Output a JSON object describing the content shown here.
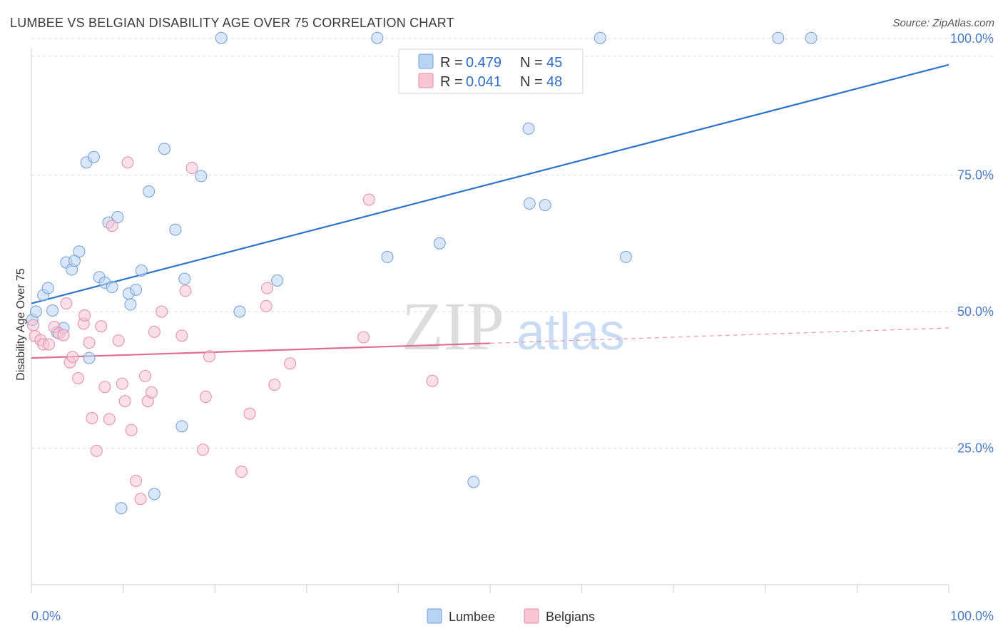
{
  "header": {
    "title": "LUMBEE VS BELGIAN DISABILITY AGE OVER 75 CORRELATION CHART",
    "source": "Source: ZipAtlas.com"
  },
  "watermark": {
    "zip": "ZIP",
    "atlas": "atlas"
  },
  "colors": {
    "lumbee_fill": "#b9d3f2",
    "lumbee_stroke": "#6f9ed8",
    "lumbee_line": "#2f72c9",
    "belgians_fill": "#f8c5d5",
    "belgians_stroke": "#e58aa8",
    "belgians_line": "#e06b95",
    "tick_label": "#4a7cc7",
    "grid": "#dddddd"
  },
  "legend": {
    "rows": [
      {
        "r_label": "R = ",
        "r_value": "0.479",
        "n_label": "N = ",
        "n_value": "45"
      },
      {
        "r_label": "R = ",
        "r_value": "0.041",
        "n_label": "N = ",
        "n_value": "48"
      }
    ],
    "series": [
      "Lumbee",
      "Belgians"
    ]
  },
  "chart_data": {
    "type": "scatter",
    "title": "LUMBEE VS BELGIAN DISABILITY AGE OVER 75 CORRELATION CHART",
    "xlabel": "",
    "ylabel": "Disability Age Over 75",
    "xlim": [
      0,
      100
    ],
    "ylim": [
      0,
      105
    ],
    "x_tick_labels": [
      "0.0%",
      "100.0%"
    ],
    "y_ticks": [
      {
        "value": 25,
        "label": "25.0%"
      },
      {
        "value": 50,
        "label": "50.0%"
      },
      {
        "value": 75,
        "label": "75.0%"
      },
      {
        "value": 100,
        "label": "100.0%"
      }
    ],
    "grid": true,
    "legend_position": "top-center",
    "series": [
      {
        "name": "Lumbee",
        "points": [
          [
            0.1,
            48.5
          ],
          [
            0.5,
            50
          ],
          [
            1.3,
            53
          ],
          [
            1.8,
            54.3
          ],
          [
            2.3,
            50.2
          ],
          [
            2.8,
            46.2
          ],
          [
            3.5,
            47
          ],
          [
            3.8,
            59
          ],
          [
            4.4,
            57.7
          ],
          [
            4.7,
            59.3
          ],
          [
            5.2,
            61
          ],
          [
            6.0,
            77.3
          ],
          [
            6.8,
            78.3
          ],
          [
            7.4,
            56.3
          ],
          [
            8.0,
            55.3
          ],
          [
            8.4,
            66.3
          ],
          [
            8.8,
            54.5
          ],
          [
            9.4,
            67.3
          ],
          [
            9.8,
            14
          ],
          [
            10.6,
            53.3
          ],
          [
            10.8,
            51.3
          ],
          [
            11.4,
            54
          ],
          [
            12.0,
            57.5
          ],
          [
            12.8,
            72
          ],
          [
            13.4,
            16.6
          ],
          [
            14.5,
            79.8
          ],
          [
            15.7,
            65
          ],
          [
            16.4,
            29
          ],
          [
            16.7,
            56
          ],
          [
            18.5,
            74.8
          ],
          [
            20.7,
            100.1
          ],
          [
            22.7,
            50
          ],
          [
            26.8,
            55.7
          ],
          [
            37.7,
            100.1
          ],
          [
            38.8,
            60
          ],
          [
            44.5,
            62.5
          ],
          [
            48.2,
            18.8
          ],
          [
            54.2,
            83.5
          ],
          [
            54.3,
            69.8
          ],
          [
            56.0,
            69.5
          ],
          [
            62.0,
            100.1
          ],
          [
            64.8,
            60
          ],
          [
            81.4,
            100.1
          ],
          [
            85.0,
            100.1
          ],
          [
            6.3,
            41.5
          ]
        ],
        "trend": {
          "x": [
            0,
            100
          ],
          "y": [
            51.5,
            95.2
          ]
        }
      },
      {
        "name": "Belgians",
        "points": [
          [
            0.2,
            47.5
          ],
          [
            0.4,
            45.5
          ],
          [
            1.0,
            44.8
          ],
          [
            1.3,
            44
          ],
          [
            1.9,
            44
          ],
          [
            2.5,
            47.2
          ],
          [
            3.0,
            46
          ],
          [
            3.5,
            45.7
          ],
          [
            3.8,
            51.5
          ],
          [
            4.2,
            40.7
          ],
          [
            4.5,
            41.7
          ],
          [
            5.1,
            37.8
          ],
          [
            5.7,
            47.8
          ],
          [
            5.8,
            49.3
          ],
          [
            6.3,
            44.3
          ],
          [
            6.6,
            30.5
          ],
          [
            7.1,
            24.5
          ],
          [
            7.6,
            47.3
          ],
          [
            8.0,
            36.2
          ],
          [
            8.5,
            30.3
          ],
          [
            8.8,
            65.7
          ],
          [
            9.5,
            44.7
          ],
          [
            9.9,
            36.8
          ],
          [
            10.2,
            33.6
          ],
          [
            10.5,
            77.3
          ],
          [
            10.9,
            28.3
          ],
          [
            11.4,
            19
          ],
          [
            11.9,
            15.7
          ],
          [
            12.4,
            38.2
          ],
          [
            12.7,
            33.6
          ],
          [
            13.1,
            35.2
          ],
          [
            13.4,
            46.3
          ],
          [
            14.2,
            50
          ],
          [
            16.4,
            45.6
          ],
          [
            16.8,
            53.8
          ],
          [
            17.5,
            76.3
          ],
          [
            18.7,
            24.7
          ],
          [
            19.0,
            34.4
          ],
          [
            19.4,
            41.8
          ],
          [
            22.9,
            20.7
          ],
          [
            23.8,
            31.3
          ],
          [
            25.6,
            51
          ],
          [
            25.7,
            54.3
          ],
          [
            26.5,
            36.6
          ],
          [
            28.2,
            40.5
          ],
          [
            36.2,
            45.3
          ],
          [
            36.8,
            70.5
          ],
          [
            43.7,
            37.3
          ]
        ],
        "trend": {
          "x": [
            0,
            50,
            100
          ],
          "y": [
            41.5,
            44.2,
            47.0
          ],
          "solid_until": 50
        }
      }
    ]
  }
}
